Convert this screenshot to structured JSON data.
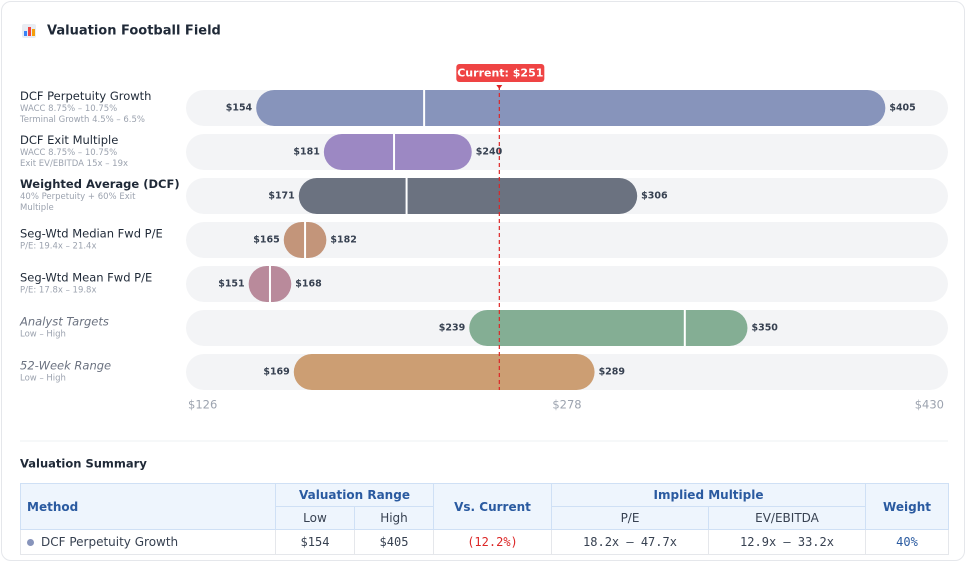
{
  "header": {
    "title": "Valuation Football Field"
  },
  "chart_data": {
    "type": "range_bar",
    "categories": [
      "DCF Perpetuity Growth",
      "DCF Exit Multiple",
      "Weighted Average (DCF)",
      "Seg-Wtd Median Fwd P/E",
      "Seg-Wtd Mean Fwd P/E",
      "Analyst Targets",
      "52-Week Range"
    ],
    "subtitles": [
      [
        "WACC 8.75% – 10.75%",
        "Terminal Growth 4.5% – 6.5%"
      ],
      [
        "WACC 8.75% – 10.75%",
        "Exit EV/EBITDA 15x – 19x"
      ],
      [
        "40% Perpetuity + 60% Exit",
        "Multiple"
      ],
      [
        "P/E: 19.4x – 21.4x"
      ],
      [
        "P/E: 17.8x – 19.8x"
      ],
      [
        "Low – High"
      ],
      [
        "Low – High"
      ]
    ],
    "label_styles": [
      "normal",
      "normal",
      "bold",
      "normal",
      "normal",
      "italic",
      "italic"
    ],
    "low": [
      154,
      181,
      171,
      165,
      151,
      239,
      169
    ],
    "low_labels": [
      "$154",
      "$181",
      "$171",
      "$165",
      "$151",
      "$239",
      "$169"
    ],
    "high": [
      405,
      240,
      306,
      182,
      168,
      350,
      289
    ],
    "high_labels": [
      "$405",
      "$240",
      "$306",
      "$182",
      "$168",
      "$350",
      "$289"
    ],
    "mid": [
      221,
      209,
      214,
      173.5,
      159.5,
      325,
      null
    ],
    "colors": [
      "#8794bb",
      "#9c88c3",
      "#6b7280",
      "#c3957a",
      "#b98a9b",
      "#84ae94",
      "#cc9e73"
    ],
    "current": {
      "value": 251,
      "label": "Current: $251"
    },
    "xlim": [
      126,
      430
    ],
    "xticks": [
      {
        "value": 126,
        "label": "$126"
      },
      {
        "value": 278,
        "label": "$278"
      },
      {
        "value": 430,
        "label": "$430"
      }
    ]
  },
  "table": {
    "title": "Valuation Summary",
    "headers": {
      "method": "Method",
      "range": "Valuation Range",
      "low": "Low",
      "high": "High",
      "vs": "Vs. Current",
      "implied": "Implied Multiple",
      "pe": "P/E",
      "ev": "EV/EBITDA",
      "weight": "Weight"
    },
    "rows": [
      [
        "DCF Perpetuity Growth",
        "$154",
        "$405",
        "(12.2%)",
        "18.2x – 47.7x",
        "12.9x – 33.2x",
        "40%"
      ]
    ]
  }
}
